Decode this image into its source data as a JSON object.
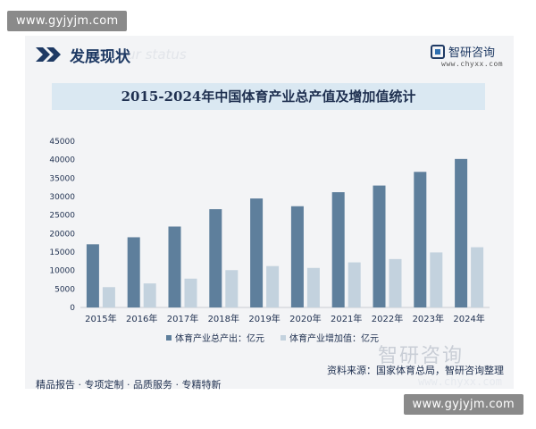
{
  "site_badge": "www.gyjyjm.com",
  "header": {
    "title": "发展现状",
    "ghost_text": "our status",
    "brand_name": "智研咨询",
    "brand_url": "www.chyxx.com"
  },
  "footer": {
    "slogan": "精品报告 · 专项定制 · 品质服务 · 专精特新",
    "source": "资料来源：国家体育总局，智研咨询整理",
    "watermark": "智研咨询",
    "watermark_url": "www.chyxx.com"
  },
  "colors": {
    "series_total": "#5e7f9c",
    "series_added": "#c3d2de",
    "title_bar": "#dae8f2",
    "text": "#1f3050"
  },
  "chart_data": {
    "type": "bar",
    "title": "2015-2024年中国体育产业总产值及增加值统计",
    "categories": [
      "2015年",
      "2016年",
      "2017年",
      "2018年",
      "2019年",
      "2020年",
      "2021年",
      "2022年",
      "2023年",
      "2024年"
    ],
    "series": [
      {
        "name": "体育产业总产出：亿元",
        "values": [
          17100,
          19000,
          21900,
          26600,
          29500,
          27400,
          31200,
          33000,
          36700,
          40200
        ]
      },
      {
        "name": "体育产业增加值：亿元",
        "values": [
          5500,
          6500,
          7800,
          10100,
          11200,
          10700,
          12200,
          13100,
          14900,
          16300
        ]
      }
    ],
    "ylim": [
      0,
      45000
    ],
    "yticks": [
      0,
      5000,
      10000,
      15000,
      20000,
      25000,
      30000,
      35000,
      40000,
      45000
    ],
    "grid": false,
    "legend": "bottom"
  }
}
